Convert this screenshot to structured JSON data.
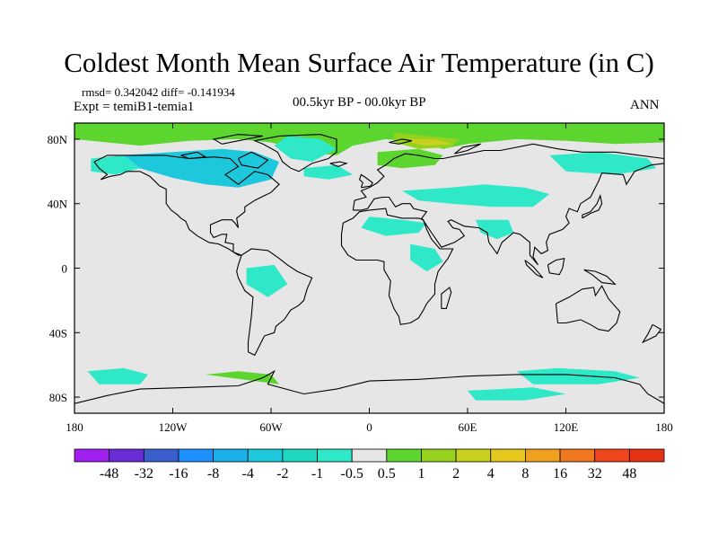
{
  "title": "Coldest Month Mean Surface Air Temperature (in C)",
  "stats": "rmsd= 0.342042 diff= -0.141934",
  "experiment": "Expt = temiB1-temia1",
  "period": "00.5kyr BP - 00.0kyr BP",
  "season": "ANN",
  "axes": {
    "lon_range": [
      -180,
      180
    ],
    "lat_range": [
      -90,
      90
    ],
    "x_ticks": [
      {
        "value": -180,
        "label": "180"
      },
      {
        "value": -120,
        "label": "120W"
      },
      {
        "value": -60,
        "label": "60W"
      },
      {
        "value": 0,
        "label": "0"
      },
      {
        "value": 60,
        "label": "60E"
      },
      {
        "value": 120,
        "label": "120E"
      },
      {
        "value": 180,
        "label": "180"
      }
    ],
    "y_ticks": [
      {
        "value": 80,
        "label": "80N"
      },
      {
        "value": 40,
        "label": "40N"
      },
      {
        "value": 0,
        "label": "0"
      },
      {
        "value": -40,
        "label": "40S"
      },
      {
        "value": -80,
        "label": "80S"
      }
    ]
  },
  "colorbar": {
    "levels": [
      "-48",
      "-32",
      "-16",
      "-8",
      "-4",
      "-2",
      "-1",
      "-0.5",
      "0.5",
      "1",
      "2",
      "4",
      "8",
      "16",
      "32",
      "48"
    ],
    "colors": [
      "#a020f0",
      "#6a2cd6",
      "#3a5fcd",
      "#1e90ff",
      "#1cb0e8",
      "#1ec8dc",
      "#1ed8c0",
      "#2ee8c8",
      "#e6e6e6",
      "#5cd62e",
      "#96d11e",
      "#c8d21e",
      "#e6c81e",
      "#f0a01e",
      "#f0781e",
      "#f0461e",
      "#e63214"
    ]
  },
  "colors": {
    "neutral": "#e6e6e6",
    "cool_light": "#2ee8c8",
    "cool_mid": "#1ec8dc",
    "warm_light": "#5cd62e",
    "warm_mid": "#96d11e",
    "warm_strong": "#c8d21e",
    "warm_orange": "#e6c81e"
  },
  "regions": [
    {
      "name": "arctic-warm-band",
      "category": "warm_light",
      "poly": [
        [
          -180,
          90
        ],
        [
          180,
          90
        ],
        [
          180,
          78
        ],
        [
          150,
          77
        ],
        [
          120,
          79
        ],
        [
          90,
          80
        ],
        [
          60,
          77
        ],
        [
          45,
          74
        ],
        [
          30,
          78
        ],
        [
          10,
          80
        ],
        [
          -10,
          76
        ],
        [
          -20,
          70
        ],
        [
          -40,
          72
        ],
        [
          -60,
          78
        ],
        [
          -80,
          80
        ],
        [
          -110,
          79
        ],
        [
          -140,
          76
        ],
        [
          -160,
          78
        ],
        [
          -180,
          80
        ]
      ]
    },
    {
      "name": "barents-warm",
      "category": "warm_mid",
      "poly": [
        [
          15,
          84
        ],
        [
          35,
          82
        ],
        [
          55,
          80
        ],
        [
          50,
          75
        ],
        [
          30,
          74
        ],
        [
          15,
          78
        ]
      ]
    },
    {
      "name": "kara-strong",
      "category": "warm_strong",
      "poly": [
        [
          25,
          80
        ],
        [
          40,
          80
        ],
        [
          50,
          77
        ],
        [
          35,
          76
        ],
        [
          25,
          78
        ]
      ]
    },
    {
      "name": "scandinavia-warm",
      "category": "warm_light",
      "poly": [
        [
          5,
          72
        ],
        [
          30,
          74
        ],
        [
          45,
          70
        ],
        [
          40,
          64
        ],
        [
          20,
          62
        ],
        [
          5,
          64
        ]
      ]
    },
    {
      "name": "canada-cool",
      "category": "cool_mid",
      "poly": [
        [
          -150,
          70
        ],
        [
          -120,
          72
        ],
        [
          -90,
          74
        ],
        [
          -70,
          72
        ],
        [
          -55,
          66
        ],
        [
          -60,
          55
        ],
        [
          -80,
          50
        ],
        [
          -100,
          52
        ],
        [
          -120,
          56
        ],
        [
          -140,
          62
        ]
      ]
    },
    {
      "name": "alaska-cool",
      "category": "cool_light",
      "poly": [
        [
          -170,
          68
        ],
        [
          -150,
          70
        ],
        [
          -140,
          62
        ],
        [
          -155,
          58
        ],
        [
          -170,
          60
        ]
      ]
    },
    {
      "name": "greenland-cool",
      "category": "cool_light",
      "poly": [
        [
          -50,
          82
        ],
        [
          -30,
          80
        ],
        [
          -20,
          74
        ],
        [
          -35,
          66
        ],
        [
          -48,
          68
        ],
        [
          -58,
          76
        ]
      ]
    },
    {
      "name": "n-atlantic-cool",
      "category": "cool_light",
      "poly": [
        [
          -40,
          62
        ],
        [
          -20,
          64
        ],
        [
          -10,
          58
        ],
        [
          -25,
          55
        ],
        [
          -40,
          57
        ]
      ]
    },
    {
      "name": "siberia-cool",
      "category": "cool_light",
      "poly": [
        [
          110,
          70
        ],
        [
          140,
          72
        ],
        [
          170,
          68
        ],
        [
          175,
          62
        ],
        [
          150,
          58
        ],
        [
          120,
          60
        ]
      ]
    },
    {
      "name": "central-asia-cool",
      "category": "cool_light",
      "poly": [
        [
          20,
          48
        ],
        [
          50,
          50
        ],
        [
          70,
          52
        ],
        [
          95,
          50
        ],
        [
          110,
          46
        ],
        [
          100,
          38
        ],
        [
          75,
          38
        ],
        [
          50,
          40
        ],
        [
          30,
          42
        ]
      ]
    },
    {
      "name": "north-africa-cool",
      "category": "cool_light",
      "poly": [
        [
          0,
          32
        ],
        [
          20,
          30
        ],
        [
          35,
          28
        ],
        [
          30,
          22
        ],
        [
          10,
          20
        ],
        [
          -5,
          25
        ]
      ]
    },
    {
      "name": "india-cool",
      "category": "cool_light",
      "poly": [
        [
          65,
          30
        ],
        [
          85,
          30
        ],
        [
          88,
          22
        ],
        [
          78,
          18
        ],
        [
          68,
          22
        ]
      ]
    },
    {
      "name": "east-africa-cool",
      "category": "cool_light",
      "poly": [
        [
          25,
          15
        ],
        [
          40,
          12
        ],
        [
          45,
          4
        ],
        [
          35,
          -2
        ],
        [
          25,
          5
        ]
      ]
    },
    {
      "name": "south-america-cool",
      "category": "cool_light",
      "poly": [
        [
          -75,
          0
        ],
        [
          -58,
          2
        ],
        [
          -50,
          -10
        ],
        [
          -62,
          -18
        ],
        [
          -75,
          -10
        ]
      ]
    },
    {
      "name": "southern-ocean-cool-w",
      "category": "cool_light",
      "poly": [
        [
          -172,
          -64
        ],
        [
          -150,
          -62
        ],
        [
          -135,
          -66
        ],
        [
          -140,
          -72
        ],
        [
          -165,
          -72
        ]
      ]
    },
    {
      "name": "southern-ocean-warm",
      "category": "warm_light",
      "poly": [
        [
          -100,
          -66
        ],
        [
          -80,
          -64
        ],
        [
          -60,
          -66
        ],
        [
          -55,
          -72
        ],
        -1
      ]
    },
    {
      "name": "southern-ocean-cool-e",
      "category": "cool_light",
      "poly": [
        [
          90,
          -64
        ],
        [
          115,
          -62
        ],
        [
          150,
          -64
        ],
        [
          165,
          -68
        ],
        [
          140,
          -72
        ],
        [
          100,
          -72
        ]
      ]
    },
    {
      "name": "antarctic-cool",
      "category": "cool_light",
      "poly": [
        [
          60,
          -76
        ],
        [
          100,
          -74
        ],
        [
          120,
          -78
        ],
        [
          95,
          -82
        ],
        [
          65,
          -82
        ]
      ]
    }
  ]
}
